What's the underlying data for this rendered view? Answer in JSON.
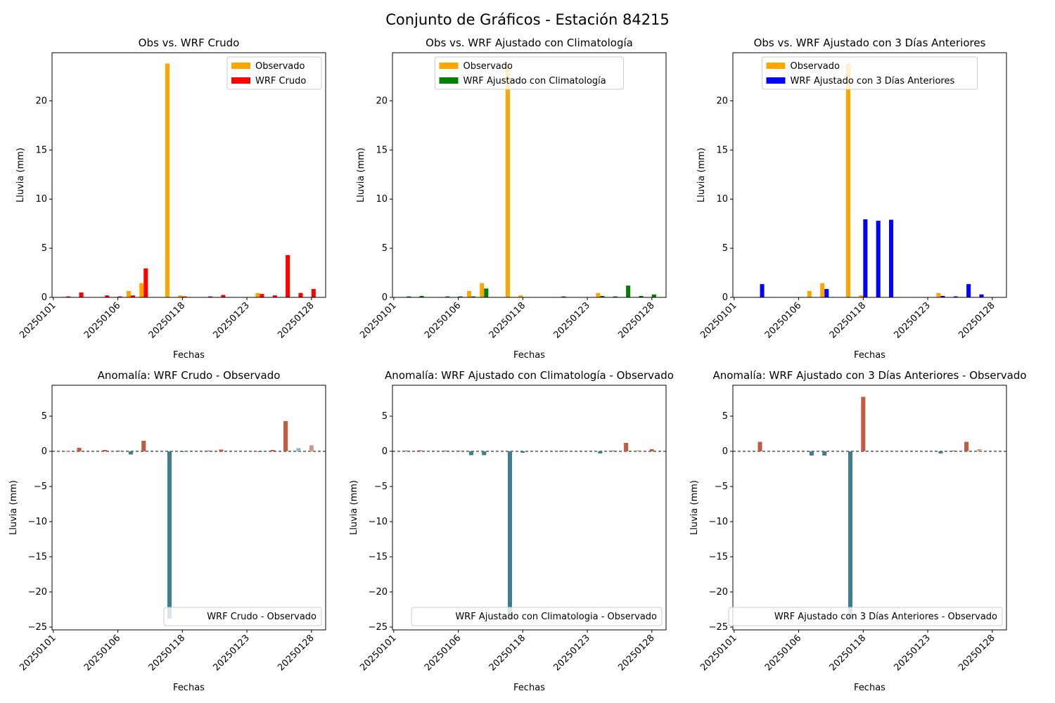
{
  "suptitle": "Conjunto de Gráficos - Estación 84215",
  "colors": {
    "observado": "#ffa500",
    "crudo": "#ff0000",
    "clima": "#008000",
    "tres_dias": "#0000ff",
    "anom_pos": "#c45a40",
    "anom_neg": "#3e7f8f",
    "anom_pos_light": "#c99a8c",
    "anom_neg_light": "#93b6bd"
  },
  "chart_data": [
    {
      "type": "bar",
      "title": "Obs vs. WRF Crudo",
      "xlabel": "Fechas",
      "ylabel": "Lluvia (mm)",
      "ylim": [
        0,
        24.9
      ],
      "yticks": [
        0,
        5,
        10,
        15,
        20
      ],
      "xticks": [
        "20250101",
        "20250106",
        "20250118",
        "20250123",
        "20250128"
      ],
      "legend_position": "upper right",
      "series": [
        {
          "name": "Observado",
          "color_key": "observado",
          "points": [
            {
              "x": 1,
              "y": 0.05
            },
            {
              "x": 6,
              "y": 0.65
            },
            {
              "x": 7,
              "y": 1.45
            },
            {
              "x": 9,
              "y": 23.8
            },
            {
              "x": 10,
              "y": 0.2
            },
            {
              "x": 16,
              "y": 0.45
            }
          ]
        },
        {
          "name": "WRF Crudo",
          "color_key": "crudo",
          "points": [
            {
              "x": 1,
              "y": 0.1
            },
            {
              "x": 2,
              "y": 0.5
            },
            {
              "x": 4,
              "y": 0.2
            },
            {
              "x": 5,
              "y": 0.1
            },
            {
              "x": 6,
              "y": 0.2
            },
            {
              "x": 7,
              "y": 2.95
            },
            {
              "x": 10,
              "y": 0.1
            },
            {
              "x": 12,
              "y": 0.1
            },
            {
              "x": 13,
              "y": 0.25
            },
            {
              "x": 16,
              "y": 0.35
            },
            {
              "x": 17,
              "y": 0.2
            },
            {
              "x": 18,
              "y": 4.3
            },
            {
              "x": 19,
              "y": 0.45
            },
            {
              "x": 20,
              "y": 0.85
            }
          ]
        }
      ]
    },
    {
      "type": "bar",
      "title": "Obs vs. WRF Ajustado con Climatología",
      "xlabel": "Fechas",
      "ylabel": "Lluvia (mm)",
      "ylim": [
        0,
        24.9
      ],
      "yticks": [
        0,
        5,
        10,
        15,
        20
      ],
      "xticks": [
        "20250101",
        "20250106",
        "20250118",
        "20250123",
        "20250128"
      ],
      "legend_position": "upper center",
      "series": [
        {
          "name": "Observado",
          "color_key": "observado",
          "points": [
            {
              "x": 6,
              "y": 0.65
            },
            {
              "x": 7,
              "y": 1.45
            },
            {
              "x": 9,
              "y": 23.8
            },
            {
              "x": 10,
              "y": 0.2
            },
            {
              "x": 16,
              "y": 0.45
            }
          ]
        },
        {
          "name": "WRF Ajustado con Climatología",
          "color_key": "clima",
          "points": [
            {
              "x": 1,
              "y": 0.1
            },
            {
              "x": 2,
              "y": 0.15
            },
            {
              "x": 4,
              "y": 0.1
            },
            {
              "x": 5,
              "y": 0.1
            },
            {
              "x": 6,
              "y": 0.1
            },
            {
              "x": 7,
              "y": 0.9
            },
            {
              "x": 13,
              "y": 0.1
            },
            {
              "x": 16,
              "y": 0.15
            },
            {
              "x": 17,
              "y": 0.1
            },
            {
              "x": 18,
              "y": 1.2
            },
            {
              "x": 19,
              "y": 0.15
            },
            {
              "x": 20,
              "y": 0.3
            }
          ]
        }
      ]
    },
    {
      "type": "bar",
      "title": "Obs vs. WRF Ajustado con 3 Días Anteriores",
      "xlabel": "Fechas",
      "ylabel": "Lluvia (mm)",
      "ylim": [
        0,
        24.9
      ],
      "yticks": [
        0,
        5,
        10,
        15,
        20
      ],
      "xticks": [
        "20250101",
        "20250106",
        "20250118",
        "20250123",
        "20250128"
      ],
      "legend_position": "upper center",
      "series": [
        {
          "name": "Observado",
          "color_key": "observado",
          "points": [
            {
              "x": 6,
              "y": 0.65
            },
            {
              "x": 7,
              "y": 1.45
            },
            {
              "x": 9,
              "y": 23.8
            },
            {
              "x": 10,
              "y": 0.2
            },
            {
              "x": 16,
              "y": 0.45
            }
          ]
        },
        {
          "name": "WRF Ajustado con 3 Días Anteriores",
          "color_key": "tres_dias",
          "points": [
            {
              "x": 2,
              "y": 1.35
            },
            {
              "x": 7,
              "y": 0.85
            },
            {
              "x": 10,
              "y": 7.95
            },
            {
              "x": 11,
              "y": 7.8
            },
            {
              "x": 12,
              "y": 7.9
            },
            {
              "x": 16,
              "y": 0.15
            },
            {
              "x": 17,
              "y": 0.1
            },
            {
              "x": 18,
              "y": 1.35
            },
            {
              "x": 19,
              "y": 0.3
            }
          ]
        }
      ]
    },
    {
      "type": "bar",
      "title": "Anomalía: WRF Crudo - Observado",
      "xlabel": "Fechas",
      "ylabel": "Lluvia (mm)",
      "ylim": [
        -25.4,
        9.4
      ],
      "yticks": [
        -25,
        -20,
        -15,
        -10,
        -5,
        0,
        5
      ],
      "xticks": [
        "20250101",
        "20250106",
        "20250118",
        "20250123",
        "20250128"
      ],
      "legend_position": "lower right",
      "series": [
        {
          "name": "WRF Crudo - Observado",
          "points": [
            {
              "x": 1,
              "y": 0.05
            },
            {
              "x": 2,
              "y": 0.5
            },
            {
              "x": 4,
              "y": 0.2
            },
            {
              "x": 5,
              "y": 0.1
            },
            {
              "x": 6,
              "y": -0.45
            },
            {
              "x": 7,
              "y": 1.5
            },
            {
              "x": 9,
              "y": -23.8
            },
            {
              "x": 10,
              "y": -0.1
            },
            {
              "x": 12,
              "y": 0.1
            },
            {
              "x": 13,
              "y": 0.25
            },
            {
              "x": 16,
              "y": -0.1
            },
            {
              "x": 17,
              "y": 0.2
            },
            {
              "x": 18,
              "y": 4.3
            },
            {
              "x": 19,
              "y": 0.45
            },
            {
              "x": 20,
              "y": 0.85
            }
          ]
        }
      ]
    },
    {
      "type": "bar",
      "title": "Anomalía: WRF Ajustado con Climatología - Observado",
      "xlabel": "Fechas",
      "ylabel": "Lluvia (mm)",
      "ylim": [
        -25.4,
        9.4
      ],
      "yticks": [
        -25,
        -20,
        -15,
        -10,
        -5,
        0,
        5
      ],
      "xticks": [
        "20250101",
        "20250106",
        "20250118",
        "20250123",
        "20250128"
      ],
      "legend_position": "lower right",
      "series": [
        {
          "name": "WRF Ajustado con Climatologia - Observado",
          "points": [
            {
              "x": 1,
              "y": 0.1
            },
            {
              "x": 2,
              "y": 0.15
            },
            {
              "x": 4,
              "y": 0.1
            },
            {
              "x": 5,
              "y": 0.1
            },
            {
              "x": 6,
              "y": -0.55
            },
            {
              "x": 7,
              "y": -0.55
            },
            {
              "x": 9,
              "y": -23.8
            },
            {
              "x": 10,
              "y": -0.2
            },
            {
              "x": 13,
              "y": 0.1
            },
            {
              "x": 16,
              "y": -0.3
            },
            {
              "x": 17,
              "y": 0.1
            },
            {
              "x": 18,
              "y": 1.2
            },
            {
              "x": 19,
              "y": 0.15
            },
            {
              "x": 20,
              "y": 0.3
            }
          ]
        }
      ]
    },
    {
      "type": "bar",
      "title": "Anomalía: WRF Ajustado con 3 Días Anteriores - Observado",
      "xlabel": "Fechas",
      "ylabel": "Lluvia (mm)",
      "ylim": [
        -25.4,
        9.4
      ],
      "yticks": [
        -25,
        -20,
        -15,
        -10,
        -5,
        0,
        5
      ],
      "xticks": [
        "20250101",
        "20250106",
        "20250118",
        "20250123",
        "20250128"
      ],
      "legend_position": "lower right",
      "series": [
        {
          "name": "WRF Ajustado con 3 Días Anteriores - Observado",
          "points": [
            {
              "x": 2,
              "y": 1.35
            },
            {
              "x": 6,
              "y": -0.6
            },
            {
              "x": 7,
              "y": -0.6
            },
            {
              "x": 9,
              "y": -23.8
            },
            {
              "x": 10,
              "y": 7.75
            },
            {
              "x": 16,
              "y": -0.3
            },
            {
              "x": 17,
              "y": 0.1
            },
            {
              "x": 18,
              "y": 1.35
            },
            {
              "x": 19,
              "y": 0.3
            }
          ]
        }
      ]
    }
  ]
}
